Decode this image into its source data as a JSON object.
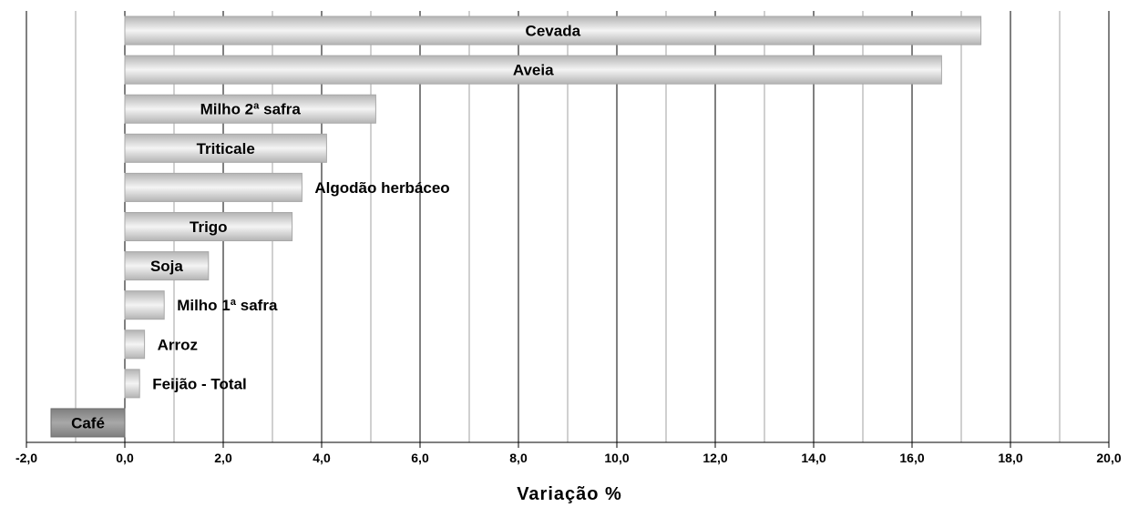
{
  "chart_data": {
    "type": "bar",
    "orientation": "horizontal",
    "title": "",
    "xlabel": "Variação %",
    "ylabel": "",
    "xlim": [
      -2.0,
      20.0
    ],
    "xticks": [
      -2.0,
      0.0,
      2.0,
      4.0,
      6.0,
      8.0,
      10.0,
      12.0,
      14.0,
      16.0,
      18.0,
      20.0
    ],
    "xtick_labels": [
      "-2,0",
      "0,0",
      "2,0",
      "4,0",
      "6,0",
      "8,0",
      "10,0",
      "12,0",
      "14,0",
      "16,0",
      "18,0",
      "20,0"
    ],
    "grid": true,
    "categories": [
      "Cevada",
      "Aveia",
      "Milho 2ª safra",
      "Triticale",
      "Algodão herbáceo",
      "Trigo",
      "Soja",
      "Milho 1ª safra",
      "Arroz",
      "Feijão - Total",
      "Café"
    ],
    "values": [
      17.4,
      16.6,
      5.1,
      4.1,
      3.6,
      3.4,
      1.7,
      0.8,
      0.4,
      0.3,
      -1.5
    ],
    "label_placement": [
      "inside",
      "inside",
      "inside",
      "inside",
      "outside",
      "inside",
      "inside",
      "outside",
      "outside",
      "outside",
      "inside"
    ],
    "colors": {
      "positive": "#bdbdbd",
      "negative": "#8c8c8c",
      "grid_major": "#000000",
      "grid_minor": "#a0a0a0"
    }
  }
}
